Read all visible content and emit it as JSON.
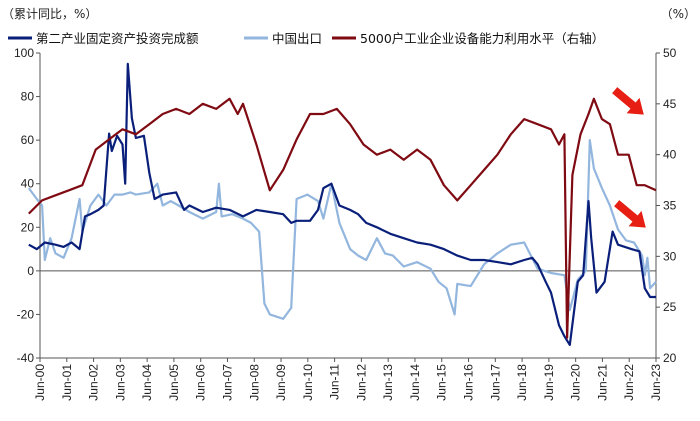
{
  "chart_data": {
    "type": "line",
    "title": "",
    "left_unit": "（累计同比，%）",
    "right_unit": "（%）",
    "left_ylim": [
      -40,
      100
    ],
    "left_yticks": [
      -40,
      -20,
      0,
      20,
      40,
      60,
      80,
      100
    ],
    "right_ylim": [
      20,
      50
    ],
    "right_yticks": [
      20,
      25,
      30,
      35,
      40,
      45,
      50
    ],
    "x_range": [
      2000.42,
      2023.42
    ],
    "x_ticks": [
      "Jun-00",
      "Jun-01",
      "Jun-02",
      "Jun-03",
      "Jun-04",
      "Jun-05",
      "Jun-06",
      "Jun-07",
      "Jun-08",
      "Jun-09",
      "Jun-10",
      "Jun-11",
      "Jun-12",
      "Jun-13",
      "Jun-14",
      "Jun-15",
      "Jun-16",
      "Jun-17",
      "Jun-18",
      "Jun-19",
      "Jun-20",
      "Jun-21",
      "Jun-22",
      "Jun-23"
    ],
    "grid": false,
    "legend_position": "top",
    "series": [
      {
        "name": "第二产业固定资产投资完成额",
        "axis": "left",
        "color": "#0a1f7a",
        "points": [
          [
            2000.0,
            12
          ],
          [
            2000.3,
            10
          ],
          [
            2000.6,
            13
          ],
          [
            2001.0,
            12
          ],
          [
            2001.3,
            11
          ],
          [
            2001.6,
            13
          ],
          [
            2001.9,
            10
          ],
          [
            2002.1,
            25
          ],
          [
            2002.3,
            26
          ],
          [
            2002.6,
            28
          ],
          [
            2002.8,
            30
          ],
          [
            2003.0,
            63
          ],
          [
            2003.1,
            55
          ],
          [
            2003.3,
            62
          ],
          [
            2003.5,
            58
          ],
          [
            2003.6,
            40
          ],
          [
            2003.7,
            95
          ],
          [
            2003.85,
            70
          ],
          [
            2004.0,
            61
          ],
          [
            2004.3,
            62
          ],
          [
            2004.5,
            45
          ],
          [
            2004.7,
            33
          ],
          [
            2005.0,
            35
          ],
          [
            2005.5,
            36
          ],
          [
            2005.8,
            28
          ],
          [
            2006.0,
            30
          ],
          [
            2006.5,
            27
          ],
          [
            2007.0,
            29
          ],
          [
            2007.5,
            28
          ],
          [
            2008.0,
            25
          ],
          [
            2008.5,
            28
          ],
          [
            2009.0,
            27
          ],
          [
            2009.5,
            26
          ],
          [
            2009.8,
            22
          ],
          [
            2010.0,
            23
          ],
          [
            2010.5,
            23
          ],
          [
            2010.8,
            28
          ],
          [
            2011.0,
            38
          ],
          [
            2011.3,
            40
          ],
          [
            2011.6,
            30
          ],
          [
            2012.0,
            28
          ],
          [
            2012.3,
            26
          ],
          [
            2012.6,
            22
          ],
          [
            2013.0,
            20
          ],
          [
            2013.5,
            17
          ],
          [
            2014.0,
            15
          ],
          [
            2014.5,
            13
          ],
          [
            2015.0,
            12
          ],
          [
            2015.5,
            10
          ],
          [
            2016.0,
            7
          ],
          [
            2016.5,
            5
          ],
          [
            2017.0,
            5
          ],
          [
            2017.5,
            4
          ],
          [
            2018.0,
            3
          ],
          [
            2018.5,
            5
          ],
          [
            2018.8,
            6
          ],
          [
            2019.0,
            3
          ],
          [
            2019.3,
            -5
          ],
          [
            2019.5,
            -10
          ],
          [
            2019.8,
            -25
          ],
          [
            2020.0,
            -30
          ],
          [
            2020.2,
            -34
          ],
          [
            2020.5,
            -5
          ],
          [
            2020.7,
            -2
          ],
          [
            2020.9,
            32
          ],
          [
            2021.0,
            15
          ],
          [
            2021.2,
            -10
          ],
          [
            2021.5,
            -5
          ],
          [
            2021.8,
            18
          ],
          [
            2022.0,
            12
          ],
          [
            2022.5,
            10
          ],
          [
            2022.8,
            9
          ],
          [
            2023.0,
            -8
          ],
          [
            2023.2,
            -12
          ],
          [
            2023.42,
            -12
          ]
        ]
      },
      {
        "name": "中国出口",
        "axis": "left",
        "color": "#93b6de",
        "points": [
          [
            2000.0,
            38
          ],
          [
            2000.3,
            33
          ],
          [
            2000.5,
            30
          ],
          [
            2000.6,
            5
          ],
          [
            2000.8,
            15
          ],
          [
            2001.0,
            8
          ],
          [
            2001.3,
            6
          ],
          [
            2001.6,
            15
          ],
          [
            2001.9,
            33
          ],
          [
            2002.0,
            18
          ],
          [
            2002.3,
            30
          ],
          [
            2002.6,
            35
          ],
          [
            2002.9,
            30
          ],
          [
            2003.2,
            35
          ],
          [
            2003.5,
            35
          ],
          [
            2003.8,
            36
          ],
          [
            2004.0,
            35
          ],
          [
            2004.5,
            36
          ],
          [
            2004.8,
            40
          ],
          [
            2005.0,
            30
          ],
          [
            2005.3,
            32
          ],
          [
            2005.6,
            30
          ],
          [
            2006.0,
            27
          ],
          [
            2006.5,
            24
          ],
          [
            2007.0,
            27
          ],
          [
            2007.1,
            40
          ],
          [
            2007.2,
            25
          ],
          [
            2007.6,
            26
          ],
          [
            2008.0,
            24
          ],
          [
            2008.3,
            22
          ],
          [
            2008.6,
            18
          ],
          [
            2008.8,
            -15
          ],
          [
            2009.0,
            -20
          ],
          [
            2009.5,
            -22
          ],
          [
            2009.8,
            -17
          ],
          [
            2010.0,
            33
          ],
          [
            2010.4,
            35
          ],
          [
            2010.8,
            32
          ],
          [
            2011.0,
            24
          ],
          [
            2011.3,
            40
          ],
          [
            2011.6,
            22
          ],
          [
            2012.0,
            10
          ],
          [
            2012.3,
            7
          ],
          [
            2012.6,
            5
          ],
          [
            2013.0,
            15
          ],
          [
            2013.3,
            8
          ],
          [
            2013.6,
            7
          ],
          [
            2014.0,
            2
          ],
          [
            2014.5,
            4
          ],
          [
            2015.0,
            1
          ],
          [
            2015.3,
            -5
          ],
          [
            2015.6,
            -8
          ],
          [
            2015.9,
            -20
          ],
          [
            2016.0,
            -6
          ],
          [
            2016.5,
            -7
          ],
          [
            2017.0,
            3
          ],
          [
            2017.5,
            8
          ],
          [
            2018.0,
            12
          ],
          [
            2018.5,
            13
          ],
          [
            2019.0,
            1
          ],
          [
            2019.5,
            -1
          ],
          [
            2020.0,
            -2
          ],
          [
            2020.2,
            -18
          ],
          [
            2020.5,
            -4
          ],
          [
            2020.8,
            0
          ],
          [
            2020.95,
            60
          ],
          [
            2021.1,
            47
          ],
          [
            2021.4,
            38
          ],
          [
            2021.7,
            30
          ],
          [
            2022.0,
            19
          ],
          [
            2022.3,
            14
          ],
          [
            2022.6,
            13
          ],
          [
            2022.9,
            7
          ],
          [
            2023.0,
            -2
          ],
          [
            2023.1,
            6
          ],
          [
            2023.2,
            -8
          ],
          [
            2023.42,
            -5
          ]
        ]
      },
      {
        "name": "5000户工业企业设备能力利用水平（右轴）",
        "axis": "right",
        "color": "#7f0a12",
        "points": [
          [
            2000.0,
            34.2
          ],
          [
            2000.5,
            35.5
          ],
          [
            2001.0,
            36.0
          ],
          [
            2001.5,
            36.5
          ],
          [
            2002.0,
            37.0
          ],
          [
            2002.5,
            40.5
          ],
          [
            2003.0,
            41.5
          ],
          [
            2003.5,
            42.5
          ],
          [
            2004.0,
            42.0
          ],
          [
            2004.5,
            43.0
          ],
          [
            2005.0,
            44.0
          ],
          [
            2005.5,
            44.5
          ],
          [
            2006.0,
            44.0
          ],
          [
            2006.5,
            45.0
          ],
          [
            2007.0,
            44.5
          ],
          [
            2007.5,
            45.5
          ],
          [
            2007.8,
            44.0
          ],
          [
            2008.0,
            45.0
          ],
          [
            2008.5,
            41.0
          ],
          [
            2009.0,
            36.5
          ],
          [
            2009.5,
            38.5
          ],
          [
            2010.0,
            41.5
          ],
          [
            2010.5,
            44.0
          ],
          [
            2011.0,
            44.0
          ],
          [
            2011.5,
            44.5
          ],
          [
            2012.0,
            43.0
          ],
          [
            2012.5,
            41.0
          ],
          [
            2013.0,
            40.0
          ],
          [
            2013.5,
            40.5
          ],
          [
            2014.0,
            39.5
          ],
          [
            2014.5,
            40.5
          ],
          [
            2015.0,
            39.5
          ],
          [
            2015.5,
            37.0
          ],
          [
            2016.0,
            35.5
          ],
          [
            2016.5,
            37.0
          ],
          [
            2017.0,
            38.5
          ],
          [
            2017.5,
            40.0
          ],
          [
            2018.0,
            42.0
          ],
          [
            2018.5,
            43.5
          ],
          [
            2019.0,
            43.0
          ],
          [
            2019.5,
            42.5
          ],
          [
            2019.8,
            41.0
          ],
          [
            2020.0,
            42.0
          ],
          [
            2020.1,
            22.0
          ],
          [
            2020.3,
            38.0
          ],
          [
            2020.6,
            42.0
          ],
          [
            2020.9,
            44.0
          ],
          [
            2021.1,
            45.5
          ],
          [
            2021.4,
            43.5
          ],
          [
            2021.7,
            43.0
          ],
          [
            2022.0,
            40.0
          ],
          [
            2022.4,
            40.0
          ],
          [
            2022.7,
            37.0
          ],
          [
            2023.0,
            37.0
          ],
          [
            2023.42,
            36.5
          ]
        ]
      }
    ],
    "annotations": [
      {
        "type": "arrow",
        "color": "#e61e14",
        "direction": "down-right",
        "near": "right-axis-top"
      },
      {
        "type": "arrow",
        "color": "#e61e14",
        "direction": "down-right",
        "near": "right-axis-middle"
      }
    ]
  }
}
